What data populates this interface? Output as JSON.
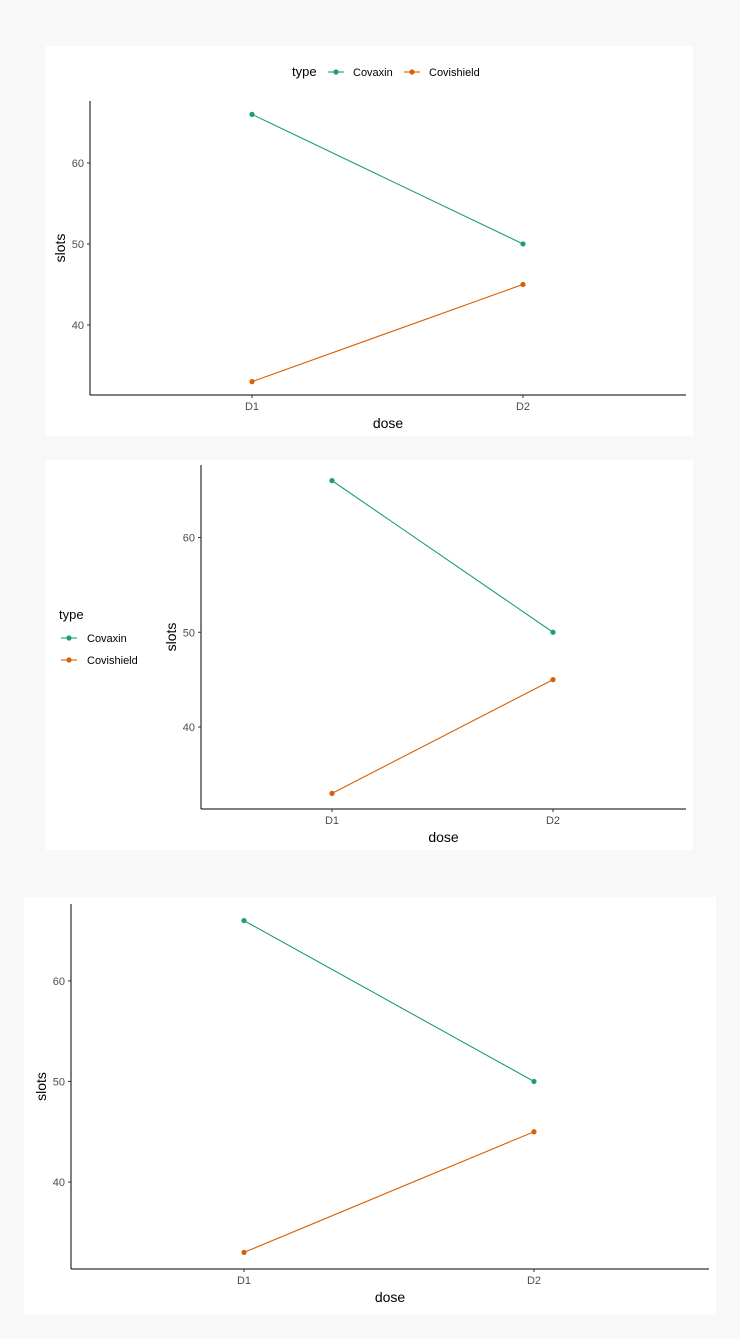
{
  "chart_data": [
    {
      "type": "line",
      "categories": [
        "D1",
        "D2"
      ],
      "series": [
        {
          "name": "Covaxin",
          "values": [
            66,
            50
          ],
          "color": "#1b9e77"
        },
        {
          "name": "Covishield",
          "values": [
            33,
            45
          ],
          "color": "#d95f02"
        }
      ],
      "title": "",
      "xlabel": "dose",
      "ylabel": "slots",
      "yticks": [
        40,
        50,
        60
      ],
      "ylim": [
        31.35,
        67.65
      ],
      "legend": {
        "title": "type",
        "position": "top"
      },
      "grid": false
    },
    {
      "type": "line",
      "categories": [
        "D1",
        "D2"
      ],
      "series": [
        {
          "name": "Covaxin",
          "values": [
            66,
            50
          ],
          "color": "#1b9e77"
        },
        {
          "name": "Covishield",
          "values": [
            33,
            45
          ],
          "color": "#d95f02"
        }
      ],
      "title": "",
      "xlabel": "dose",
      "ylabel": "slots",
      "yticks": [
        40,
        50,
        60
      ],
      "ylim": [
        31.35,
        67.65
      ],
      "legend": {
        "title": "type",
        "position": "left"
      },
      "grid": false
    },
    {
      "type": "line",
      "categories": [
        "D1",
        "D2"
      ],
      "series": [
        {
          "name": "Covaxin",
          "values": [
            66,
            50
          ],
          "color": "#1b9e77"
        },
        {
          "name": "Covishield",
          "values": [
            33,
            45
          ],
          "color": "#d95f02"
        }
      ],
      "title": "",
      "xlabel": "dose",
      "ylabel": "slots",
      "yticks": [
        40,
        50,
        60
      ],
      "ylim": [
        31.35,
        67.65
      ],
      "legend": null,
      "grid": false
    }
  ]
}
